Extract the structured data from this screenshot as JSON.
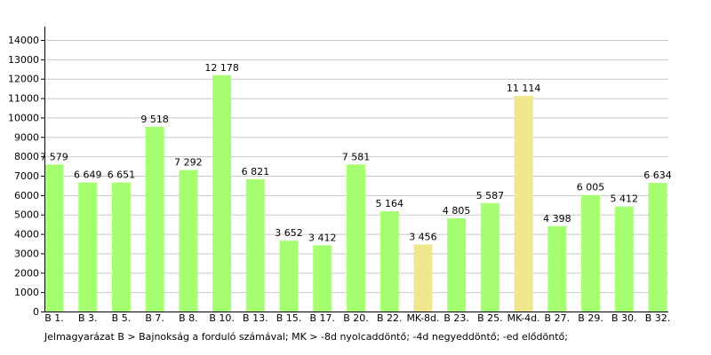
{
  "chart_data": {
    "type": "bar",
    "categories": [
      "B 1.",
      "B 3.",
      "B 5.",
      "B 7.",
      "B 8.",
      "B 10.",
      "B 13.",
      "B 15.",
      "B 17.",
      "B 20.",
      "B 22.",
      "MK-8d.",
      "B 23.",
      "B 25.",
      "MK-4d.",
      "B 27.",
      "B 29.",
      "B 30.",
      "B 32."
    ],
    "values": [
      7579,
      6649,
      6651,
      9518,
      7292,
      12178,
      6821,
      3652,
      3412,
      7581,
      5164,
      3456,
      4805,
      5587,
      11114,
      4398,
      6005,
      5412,
      6634
    ],
    "value_labels": [
      "7 579",
      "6 649",
      "6 651",
      "9 518",
      "7 292",
      "12 178",
      "6 821",
      "3 652",
      "3 412",
      "7 581",
      "5 164",
      "3 456",
      "4 805",
      "5 587",
      "11 114",
      "4 398",
      "6 005",
      "5 412",
      "6 634"
    ],
    "highlighted": [
      false,
      false,
      false,
      false,
      false,
      false,
      false,
      false,
      false,
      false,
      false,
      true,
      false,
      false,
      true,
      false,
      false,
      false,
      false
    ],
    "colors": {
      "default_bar": "#a6ff70",
      "highlight_bar": "#f0e68c",
      "grid": "#c8c8c8",
      "axis": "#000000"
    },
    "ylim": [
      0,
      14000
    ],
    "yticks": [
      0,
      1000,
      2000,
      3000,
      4000,
      5000,
      6000,
      7000,
      8000,
      9000,
      10000,
      11000,
      12000,
      13000,
      14000
    ],
    "grid": true,
    "title": "",
    "xlabel": "",
    "ylabel": "",
    "footnote": "Jelmagyarázat B > Bajnokság a forduló számával; MK > -8d nyolcaddöntő; -4d negyeddöntő; -ed elődöntő;"
  }
}
